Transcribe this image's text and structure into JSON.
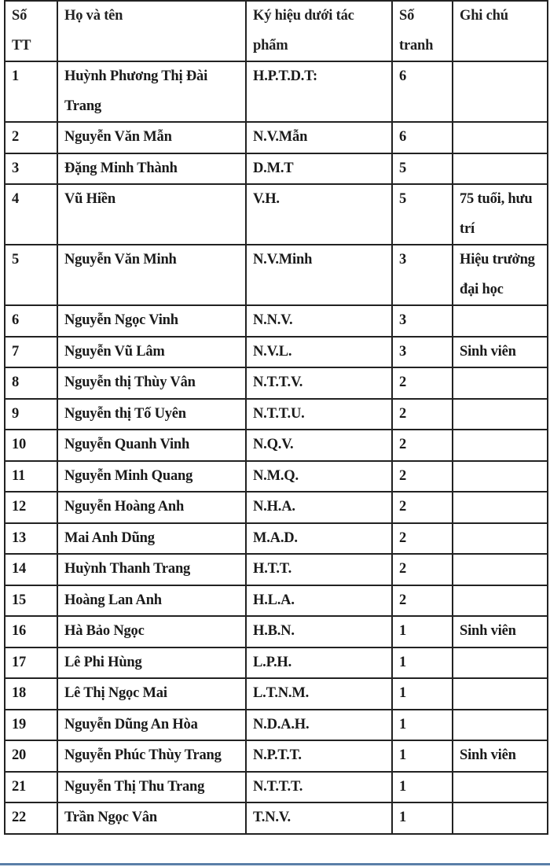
{
  "headers": {
    "stt": "Số TT",
    "name": "Họ và tên",
    "symbol": "Ký hiệu dưới tác phẩm",
    "count": "Số tranh",
    "note": "Ghi chú"
  },
  "rows": [
    {
      "stt": "1",
      "name": "Huỳnh Phương Thị Đài Trang",
      "symbol": "H.P.T.D.T:",
      "count": "6",
      "note": ""
    },
    {
      "stt": "2",
      "name": "Nguyễn Văn Mẫn",
      "symbol": "N.V.Mẫn",
      "count": "6",
      "note": ""
    },
    {
      "stt": "3",
      "name": "Đặng Minh Thành",
      "symbol": "D.M.T",
      "count": "5",
      "note": ""
    },
    {
      "stt": "4",
      "name": "Vũ Hiền",
      "symbol": "V.H.",
      "count": "5",
      "note": "75 tuổi, hưu trí"
    },
    {
      "stt": "5",
      "name": "Nguyễn Văn Minh",
      "symbol": "N.V.Minh",
      "count": "3",
      "note": "Hiệu trưởng đại học"
    },
    {
      "stt": "6",
      "name": "Nguyễn Ngọc Vinh",
      "symbol": "N.N.V.",
      "count": "3",
      "note": ""
    },
    {
      "stt": "7",
      "name": "Nguyễn Vũ Lâm",
      "symbol": "N.V.L.",
      "count": "3",
      "note": "Sinh viên"
    },
    {
      "stt": "8",
      "name": "Nguyễn thị Thùy Vân",
      "symbol": "N.T.T.V.",
      "count": "2",
      "note": ""
    },
    {
      "stt": "9",
      "name": "Nguyễn thị Tố Uyên",
      "symbol": "N.T.T.U.",
      "count": "2",
      "note": ""
    },
    {
      "stt": "10",
      "name": "Nguyễn Quanh Vinh",
      "symbol": "N.Q.V.",
      "count": "2",
      "note": ""
    },
    {
      "stt": "11",
      "name": "Nguyễn Minh Quang",
      "symbol": "N.M.Q.",
      "count": "2",
      "note": ""
    },
    {
      "stt": "12",
      "name": "Nguyễn Hoàng Anh",
      "symbol": "N.H.A.",
      "count": "2",
      "note": ""
    },
    {
      "stt": "13",
      "name": "Mai Anh Dũng",
      "symbol": "M.A.D.",
      "count": "2",
      "note": ""
    },
    {
      "stt": "14",
      "name": "Huỳnh Thanh Trang",
      "symbol": "H.T.T.",
      "count": "2",
      "note": ""
    },
    {
      "stt": "15",
      "name": "Hoàng Lan Anh",
      "symbol": "H.L.A.",
      "count": "2",
      "note": ""
    },
    {
      "stt": "16",
      "name": "Hà Bảo Ngọc",
      "symbol": "H.B.N.",
      "count": "1",
      "note": "Sinh viên"
    },
    {
      "stt": "17",
      "name": "Lê Phi Hùng",
      "symbol": "L.P.H.",
      "count": "1",
      "note": ""
    },
    {
      "stt": "18",
      "name": "Lê Thị Ngọc Mai",
      "symbol": "L.T.N.M.",
      "count": "1",
      "note": ""
    },
    {
      "stt": "19",
      "name": "Nguyễn Dũng An Hòa",
      "symbol": "N.D.A.H.",
      "count": "1",
      "note": ""
    },
    {
      "stt": "20",
      "name": "Nguyễn Phúc Thùy Trang",
      "symbol": "N.P.T.T.",
      "count": "1",
      "note": "Sinh viên"
    },
    {
      "stt": "21",
      "name": "Nguyễn Thị Thu Trang",
      "symbol": "N.T.T.T.",
      "count": "1",
      "note": ""
    },
    {
      "stt": "22",
      "name": "Trần Ngọc Vân",
      "symbol": "T.N.V.",
      "count": "1",
      "note": ""
    }
  ]
}
